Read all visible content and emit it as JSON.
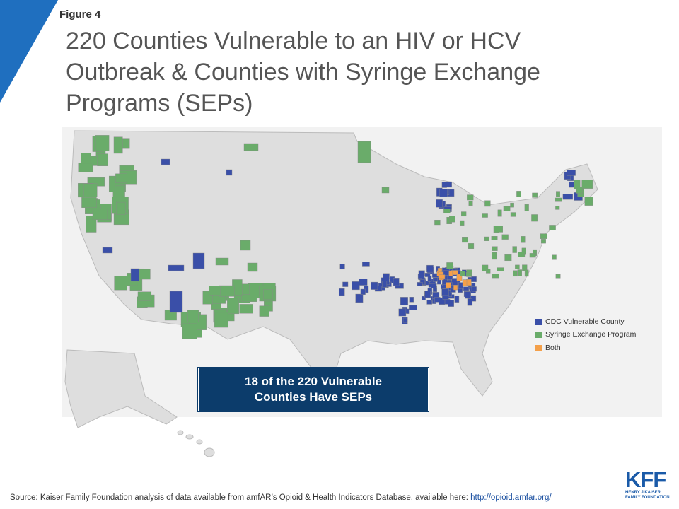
{
  "figure_label": "Figure 4",
  "title": "220 Counties Vulnerable to an HIV or HCV Outbreak & Counties with Syringe Exchange Programs (SEPs)",
  "legend": [
    {
      "label": "CDC Vulnerable County",
      "color": "#3a4fa8"
    },
    {
      "label": "Syringe Exchange Program",
      "color": "#6aac6a"
    },
    {
      "label": "Both",
      "color": "#f4a04a"
    }
  ],
  "callout": [
    "18 of the 220 Vulnerable",
    "Counties Have SEPs"
  ],
  "source": {
    "text": "Source: Kaiser Family Foundation analysis of data available from amfAR’s Opioid & Health Indicators Database, available here: ",
    "link": "http://opioid.amfar.org/"
  },
  "logo": {
    "mark": "KFF",
    "line1": "HENRY J KAISER",
    "line2": "FAMILY FOUNDATION"
  }
}
